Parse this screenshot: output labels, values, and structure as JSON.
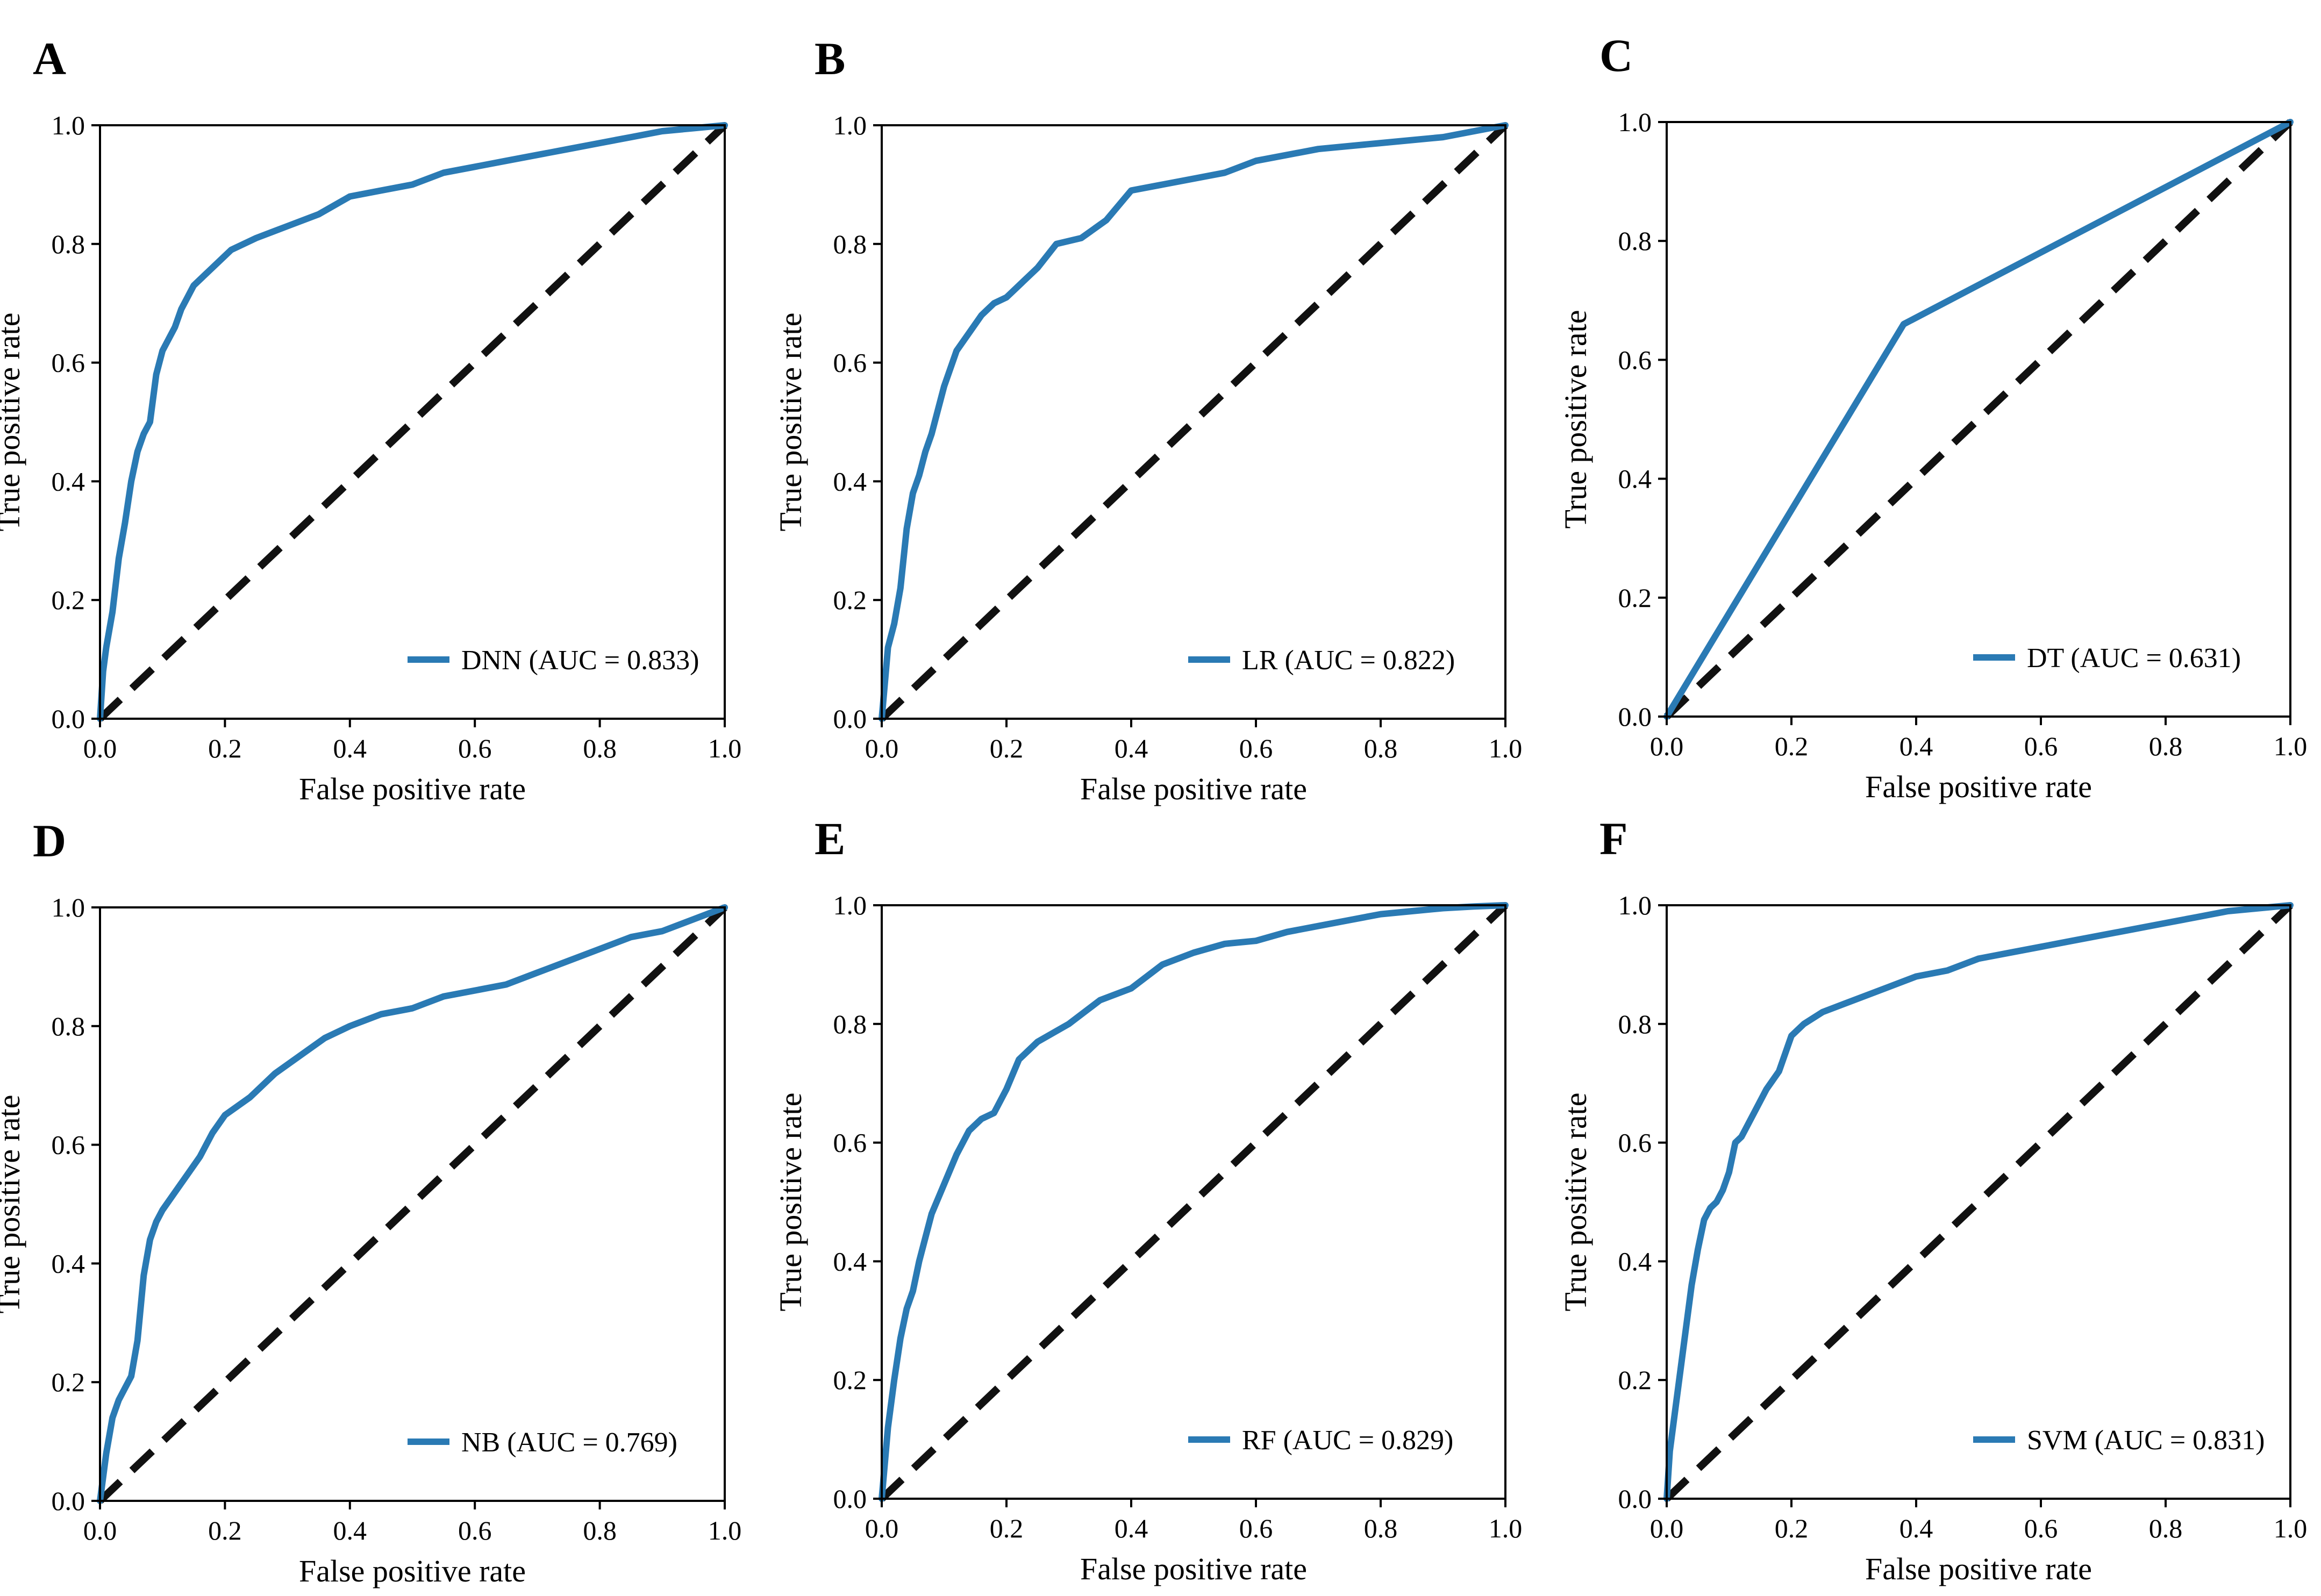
{
  "figure": {
    "colors": {
      "roc": "#2a7ab4",
      "chance": "#111111",
      "axes": "#000000"
    }
  },
  "chart_data": [
    {
      "type": "line",
      "panel": "A",
      "model": "DNN",
      "legend": "DNN (AUC = 0.833)",
      "legend_location": "lower-right",
      "xlabel": "False positive rate",
      "ylabel": "True positive rate",
      "xlim": [
        0,
        1
      ],
      "ylim": [
        0,
        1
      ],
      "xticks": [
        "0.0",
        "0.2",
        "0.4",
        "0.6",
        "0.8",
        "1.0"
      ],
      "yticks": [
        "0.0",
        "0.2",
        "0.4",
        "0.6",
        "0.8",
        "1.0"
      ],
      "series": [
        {
          "name": "DNN",
          "x": [
            0,
            0.005,
            0.01,
            0.02,
            0.03,
            0.04,
            0.05,
            0.06,
            0.07,
            0.08,
            0.09,
            0.1,
            0.11,
            0.12,
            0.13,
            0.14,
            0.15,
            0.17,
            0.19,
            0.21,
            0.25,
            0.3,
            0.35,
            0.4,
            0.45,
            0.5,
            0.55,
            0.6,
            0.65,
            0.7,
            0.75,
            0.8,
            0.85,
            0.9,
            0.95,
            1.0
          ],
          "y": [
            0,
            0.08,
            0.12,
            0.18,
            0.27,
            0.33,
            0.4,
            0.45,
            0.48,
            0.5,
            0.58,
            0.62,
            0.64,
            0.66,
            0.69,
            0.71,
            0.73,
            0.75,
            0.77,
            0.79,
            0.81,
            0.83,
            0.85,
            0.88,
            0.89,
            0.9,
            0.92,
            0.93,
            0.94,
            0.95,
            0.96,
            0.97,
            0.98,
            0.99,
            0.995,
            1.0
          ]
        }
      ]
    },
    {
      "type": "line",
      "panel": "B",
      "model": "LR",
      "legend": "LR (AUC = 0.822)",
      "legend_location": "lower-right",
      "xlabel": "False positive rate",
      "ylabel": "True positive rate",
      "xlim": [
        0,
        1
      ],
      "ylim": [
        0,
        1
      ],
      "xticks": [
        "0.0",
        "0.2",
        "0.4",
        "0.6",
        "0.8",
        "1.0"
      ],
      "yticks": [
        "0.0",
        "0.2",
        "0.4",
        "0.6",
        "0.8",
        "1.0"
      ],
      "series": [
        {
          "name": "LR",
          "x": [
            0,
            0.005,
            0.01,
            0.02,
            0.03,
            0.04,
            0.05,
            0.06,
            0.07,
            0.08,
            0.09,
            0.1,
            0.12,
            0.14,
            0.16,
            0.18,
            0.2,
            0.22,
            0.25,
            0.28,
            0.32,
            0.36,
            0.4,
            0.45,
            0.5,
            0.55,
            0.6,
            0.65,
            0.7,
            0.8,
            0.9,
            0.95,
            1.0
          ],
          "y": [
            0,
            0.06,
            0.12,
            0.16,
            0.22,
            0.32,
            0.38,
            0.41,
            0.45,
            0.48,
            0.52,
            0.56,
            0.62,
            0.65,
            0.68,
            0.7,
            0.71,
            0.73,
            0.76,
            0.8,
            0.81,
            0.84,
            0.89,
            0.9,
            0.91,
            0.92,
            0.94,
            0.95,
            0.96,
            0.97,
            0.98,
            0.99,
            1.0
          ]
        }
      ]
    },
    {
      "type": "line",
      "panel": "C",
      "model": "DT",
      "legend": "DT (AUC = 0.631)",
      "legend_location": "lower-right",
      "xlabel": "False positive rate",
      "ylabel": "True positive rate",
      "xlim": [
        0,
        1
      ],
      "ylim": [
        0,
        1
      ],
      "xticks": [
        "0.0",
        "0.2",
        "0.4",
        "0.6",
        "0.8",
        "1.0"
      ],
      "yticks": [
        "0.0",
        "0.2",
        "0.4",
        "0.6",
        "0.8",
        "1.0"
      ],
      "series": [
        {
          "name": "DT",
          "x": [
            0,
            0.38,
            1.0
          ],
          "y": [
            0,
            0.66,
            1.0
          ]
        }
      ]
    },
    {
      "type": "line",
      "panel": "D",
      "model": "NB",
      "legend": "NB (AUC = 0.769)",
      "legend_location": "lower-right",
      "xlabel": "False positive rate",
      "ylabel": "True positive rate",
      "xlim": [
        0,
        1
      ],
      "ylim": [
        0,
        1
      ],
      "xticks": [
        "0.0",
        "0.2",
        "0.4",
        "0.6",
        "0.8",
        "1.0"
      ],
      "yticks": [
        "0.0",
        "0.2",
        "0.4",
        "0.6",
        "0.8",
        "1.0"
      ],
      "series": [
        {
          "name": "NB",
          "x": [
            0,
            0.01,
            0.02,
            0.03,
            0.04,
            0.05,
            0.06,
            0.07,
            0.08,
            0.09,
            0.1,
            0.12,
            0.14,
            0.16,
            0.18,
            0.2,
            0.24,
            0.28,
            0.32,
            0.36,
            0.4,
            0.45,
            0.5,
            0.55,
            0.6,
            0.65,
            0.7,
            0.75,
            0.8,
            0.85,
            0.9,
            0.95,
            1.0
          ],
          "y": [
            0,
            0.08,
            0.14,
            0.17,
            0.19,
            0.21,
            0.27,
            0.38,
            0.44,
            0.47,
            0.49,
            0.52,
            0.55,
            0.58,
            0.62,
            0.65,
            0.68,
            0.72,
            0.75,
            0.78,
            0.8,
            0.82,
            0.83,
            0.85,
            0.86,
            0.87,
            0.89,
            0.91,
            0.93,
            0.95,
            0.96,
            0.98,
            1.0
          ]
        }
      ]
    },
    {
      "type": "line",
      "panel": "E",
      "model": "RF",
      "legend": "RF (AUC = 0.829)",
      "legend_location": "lower-right",
      "xlabel": "False positive rate",
      "ylabel": "True positive rate",
      "xlim": [
        0,
        1
      ],
      "ylim": [
        0,
        1
      ],
      "xticks": [
        "0.0",
        "0.2",
        "0.4",
        "0.6",
        "0.8",
        "1.0"
      ],
      "yticks": [
        "0.0",
        "0.2",
        "0.4",
        "0.6",
        "0.8",
        "1.0"
      ],
      "series": [
        {
          "name": "RF",
          "x": [
            0,
            0.01,
            0.02,
            0.03,
            0.04,
            0.05,
            0.06,
            0.07,
            0.08,
            0.1,
            0.12,
            0.14,
            0.16,
            0.18,
            0.2,
            0.22,
            0.25,
            0.3,
            0.35,
            0.4,
            0.45,
            0.5,
            0.55,
            0.6,
            0.65,
            0.7,
            0.75,
            0.8,
            0.85,
            0.9,
            0.95,
            1.0
          ],
          "y": [
            0,
            0.12,
            0.2,
            0.27,
            0.32,
            0.35,
            0.4,
            0.44,
            0.48,
            0.53,
            0.58,
            0.62,
            0.64,
            0.65,
            0.69,
            0.74,
            0.77,
            0.8,
            0.84,
            0.86,
            0.9,
            0.92,
            0.935,
            0.94,
            0.955,
            0.965,
            0.975,
            0.985,
            0.99,
            0.995,
            0.998,
            1.0
          ]
        }
      ]
    },
    {
      "type": "line",
      "panel": "F",
      "model": "SVM",
      "legend": "SVM (AUC = 0.831)",
      "legend_location": "lower-right",
      "xlabel": "False positive rate",
      "ylabel": "True positive rate",
      "xlim": [
        0,
        1
      ],
      "ylim": [
        0,
        1
      ],
      "xticks": [
        "0.0",
        "0.2",
        "0.4",
        "0.6",
        "0.8",
        "1.0"
      ],
      "yticks": [
        "0.0",
        "0.2",
        "0.4",
        "0.6",
        "0.8",
        "1.0"
      ],
      "series": [
        {
          "name": "SVM",
          "x": [
            0,
            0.005,
            0.01,
            0.02,
            0.03,
            0.04,
            0.05,
            0.06,
            0.07,
            0.08,
            0.09,
            0.1,
            0.11,
            0.12,
            0.14,
            0.16,
            0.18,
            0.2,
            0.22,
            0.25,
            0.3,
            0.35,
            0.4,
            0.45,
            0.5,
            0.55,
            0.6,
            0.65,
            0.7,
            0.75,
            0.8,
            0.85,
            0.9,
            0.95,
            1.0
          ],
          "y": [
            0,
            0.08,
            0.12,
            0.2,
            0.28,
            0.36,
            0.42,
            0.47,
            0.49,
            0.5,
            0.52,
            0.55,
            0.6,
            0.61,
            0.65,
            0.69,
            0.72,
            0.78,
            0.8,
            0.82,
            0.84,
            0.86,
            0.88,
            0.89,
            0.91,
            0.92,
            0.93,
            0.94,
            0.95,
            0.96,
            0.97,
            0.98,
            0.99,
            0.995,
            1.0
          ]
        }
      ]
    }
  ]
}
